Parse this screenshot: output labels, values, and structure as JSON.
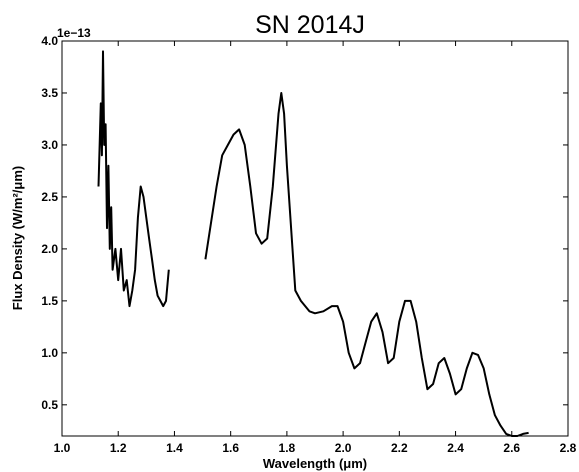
{
  "chart_data": {
    "type": "line",
    "title": "SN 2014J",
    "xlabel": "Wavelength (μm)",
    "ylabel": "Flux Density (W/m²/μm)",
    "y_offset_label": "1e−13",
    "xlim": [
      1.0,
      2.8
    ],
    "ylim": [
      0.2,
      4.0
    ],
    "y_scale_factor": 1e-13,
    "x_ticks": [
      1.0,
      1.2,
      1.4,
      1.6,
      1.8,
      2.0,
      2.2,
      2.4,
      2.6,
      2.8
    ],
    "x_tick_labels": [
      "1.0",
      "1.2",
      "1.4",
      "1.6",
      "1.8",
      "2.0",
      "2.2",
      "2.4",
      "2.6",
      "2.8"
    ],
    "y_ticks": [
      0.5,
      1.0,
      1.5,
      2.0,
      2.5,
      3.0,
      3.5,
      4.0
    ],
    "y_tick_labels": [
      "0.5",
      "1.0",
      "1.5",
      "2.0",
      "2.5",
      "3.0",
      "3.5",
      "4.0"
    ],
    "grid": false,
    "series": [
      {
        "color": "#000000",
        "segments": [
          [
            [
              1.13,
              2.6
            ],
            [
              1.138,
              3.4
            ],
            [
              1.142,
              2.9
            ],
            [
              1.146,
              3.9
            ],
            [
              1.15,
              3.0
            ],
            [
              1.155,
              3.2
            ],
            [
              1.16,
              2.2
            ],
            [
              1.165,
              2.8
            ],
            [
              1.17,
              2.0
            ],
            [
              1.175,
              2.4
            ],
            [
              1.18,
              1.8
            ],
            [
              1.19,
              2.0
            ],
            [
              1.2,
              1.7
            ],
            [
              1.21,
              2.0
            ],
            [
              1.22,
              1.6
            ],
            [
              1.23,
              1.7
            ],
            [
              1.24,
              1.45
            ],
            [
              1.25,
              1.6
            ],
            [
              1.26,
              1.8
            ],
            [
              1.27,
              2.3
            ],
            [
              1.28,
              2.6
            ],
            [
              1.29,
              2.5
            ],
            [
              1.3,
              2.3
            ],
            [
              1.31,
              2.1
            ],
            [
              1.32,
              1.9
            ],
            [
              1.33,
              1.7
            ],
            [
              1.34,
              1.55
            ],
            [
              1.35,
              1.5
            ],
            [
              1.36,
              1.45
            ],
            [
              1.37,
              1.5
            ],
            [
              1.38,
              1.8
            ]
          ],
          [
            [
              1.51,
              1.9
            ],
            [
              1.53,
              2.25
            ],
            [
              1.55,
              2.6
            ],
            [
              1.57,
              2.9
            ],
            [
              1.59,
              3.0
            ],
            [
              1.61,
              3.1
            ],
            [
              1.63,
              3.15
            ],
            [
              1.65,
              3.0
            ],
            [
              1.67,
              2.6
            ],
            [
              1.69,
              2.15
            ],
            [
              1.71,
              2.05
            ],
            [
              1.73,
              2.1
            ],
            [
              1.75,
              2.6
            ],
            [
              1.77,
              3.3
            ],
            [
              1.78,
              3.5
            ],
            [
              1.79,
              3.3
            ],
            [
              1.8,
              2.8
            ],
            [
              1.82,
              2.0
            ],
            [
              1.83,
              1.6
            ],
            [
              1.85,
              1.5
            ],
            [
              1.88,
              1.4
            ],
            [
              1.9,
              1.38
            ],
            [
              1.93,
              1.4
            ],
            [
              1.96,
              1.45
            ],
            [
              1.98,
              1.45
            ],
            [
              2.0,
              1.3
            ],
            [
              2.02,
              1.0
            ],
            [
              2.04,
              0.85
            ],
            [
              2.06,
              0.9
            ],
            [
              2.08,
              1.1
            ],
            [
              2.1,
              1.3
            ],
            [
              2.12,
              1.38
            ],
            [
              2.14,
              1.2
            ],
            [
              2.16,
              0.9
            ],
            [
              2.18,
              0.95
            ],
            [
              2.2,
              1.3
            ],
            [
              2.22,
              1.5
            ],
            [
              2.24,
              1.5
            ],
            [
              2.26,
              1.3
            ],
            [
              2.28,
              0.95
            ],
            [
              2.3,
              0.65
            ],
            [
              2.32,
              0.7
            ],
            [
              2.34,
              0.9
            ],
            [
              2.36,
              0.95
            ],
            [
              2.38,
              0.8
            ],
            [
              2.4,
              0.6
            ],
            [
              2.42,
              0.65
            ],
            [
              2.44,
              0.85
            ],
            [
              2.46,
              1.0
            ],
            [
              2.48,
              0.98
            ],
            [
              2.5,
              0.85
            ],
            [
              2.52,
              0.6
            ],
            [
              2.54,
              0.4
            ],
            [
              2.56,
              0.3
            ],
            [
              2.58,
              0.22
            ],
            [
              2.6,
              0.2
            ],
            [
              2.62,
              0.2
            ],
            [
              2.64,
              0.22
            ],
            [
              2.66,
              0.23
            ]
          ]
        ]
      }
    ]
  }
}
